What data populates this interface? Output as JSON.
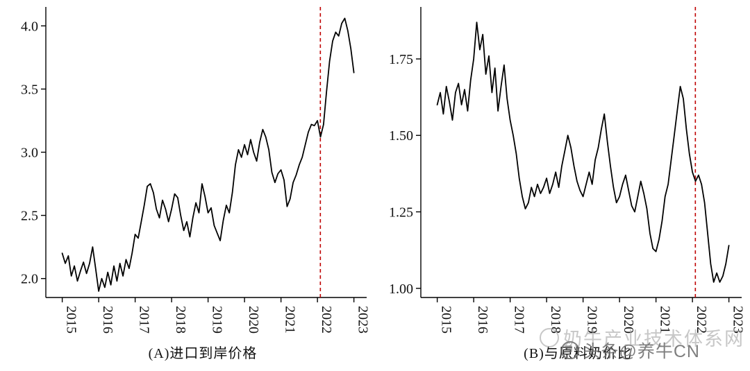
{
  "watermark": {
    "back_text": "奶牛产业技术体系网",
    "front_text": "头条@养牛CN"
  },
  "chart_data": [
    {
      "type": "line",
      "title": "(A)进口到岸价格",
      "x_unit": "monthly",
      "x_start": 2015.0,
      "x_step_years": 0.0833333,
      "xlim": [
        2014.55,
        2023.35
      ],
      "ylim": [
        1.85,
        4.15
      ],
      "yticks": [
        2.0,
        2.5,
        3.0,
        3.5,
        4.0
      ],
      "ytick_decimals": 1,
      "xticks": [
        2015,
        2016,
        2017,
        2018,
        2019,
        2020,
        2021,
        2022,
        2023
      ],
      "redline_x": 2022.08,
      "line_color": "#000000",
      "redline_color": "#c00000",
      "values": [
        2.2,
        2.12,
        2.18,
        2.02,
        2.1,
        1.98,
        2.06,
        2.13,
        2.04,
        2.12,
        2.25,
        2.08,
        1.9,
        2.0,
        1.93,
        2.05,
        1.95,
        2.1,
        1.98,
        2.12,
        2.02,
        2.15,
        2.08,
        2.2,
        2.35,
        2.32,
        2.45,
        2.58,
        2.73,
        2.75,
        2.68,
        2.55,
        2.48,
        2.62,
        2.55,
        2.45,
        2.55,
        2.67,
        2.64,
        2.5,
        2.38,
        2.45,
        2.33,
        2.48,
        2.6,
        2.52,
        2.75,
        2.65,
        2.52,
        2.56,
        2.42,
        2.36,
        2.3,
        2.46,
        2.58,
        2.52,
        2.68,
        2.9,
        3.02,
        2.96,
        3.06,
        2.98,
        3.1,
        3.0,
        2.93,
        3.08,
        3.18,
        3.12,
        3.02,
        2.84,
        2.76,
        2.83,
        2.86,
        2.78,
        2.57,
        2.63,
        2.76,
        2.82,
        2.9,
        2.96,
        3.06,
        3.16,
        3.22,
        3.21,
        3.25,
        3.12,
        3.22,
        3.48,
        3.72,
        3.88,
        3.95,
        3.92,
        4.02,
        4.06,
        3.96,
        3.82,
        3.63
      ]
    },
    {
      "type": "line",
      "title": "(B)与原料奶价比",
      "x_unit": "monthly",
      "x_start": 2015.0,
      "x_step_years": 0.0833333,
      "xlim": [
        2014.55,
        2023.35
      ],
      "ylim": [
        0.97,
        1.92
      ],
      "yticks": [
        1.0,
        1.25,
        1.5,
        1.75
      ],
      "ytick_decimals": 2,
      "xticks": [
        2015,
        2016,
        2017,
        2018,
        2019,
        2020,
        2021,
        2022,
        2023
      ],
      "redline_x": 2022.08,
      "line_color": "#000000",
      "redline_color": "#c00000",
      "values": [
        1.6,
        1.64,
        1.57,
        1.66,
        1.61,
        1.55,
        1.64,
        1.67,
        1.6,
        1.65,
        1.58,
        1.68,
        1.75,
        1.87,
        1.78,
        1.83,
        1.7,
        1.76,
        1.64,
        1.72,
        1.58,
        1.66,
        1.73,
        1.62,
        1.55,
        1.5,
        1.44,
        1.36,
        1.3,
        1.26,
        1.28,
        1.33,
        1.3,
        1.34,
        1.31,
        1.33,
        1.36,
        1.31,
        1.34,
        1.38,
        1.33,
        1.4,
        1.45,
        1.5,
        1.46,
        1.4,
        1.35,
        1.32,
        1.3,
        1.34,
        1.38,
        1.34,
        1.42,
        1.46,
        1.52,
        1.57,
        1.48,
        1.4,
        1.33,
        1.28,
        1.3,
        1.34,
        1.37,
        1.32,
        1.27,
        1.25,
        1.3,
        1.35,
        1.31,
        1.26,
        1.18,
        1.13,
        1.12,
        1.16,
        1.22,
        1.3,
        1.34,
        1.42,
        1.5,
        1.58,
        1.66,
        1.62,
        1.52,
        1.44,
        1.38,
        1.35,
        1.37,
        1.34,
        1.28,
        1.18,
        1.08,
        1.02,
        1.05,
        1.02,
        1.04,
        1.08,
        1.14
      ]
    }
  ]
}
